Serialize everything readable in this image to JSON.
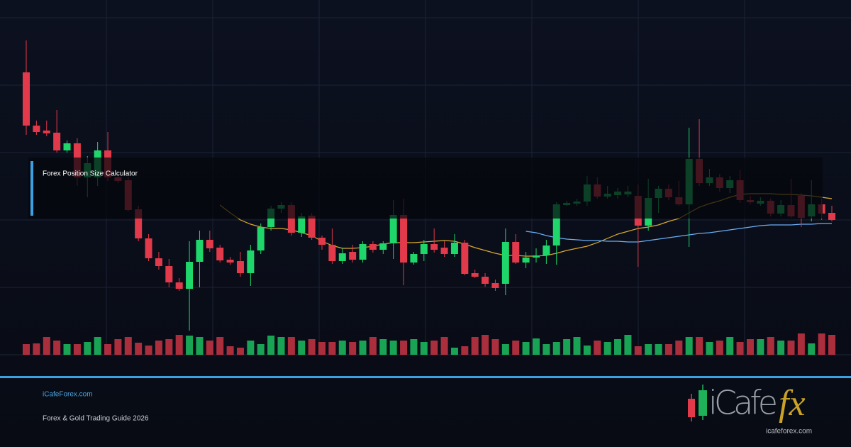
{
  "chart_data": {
    "type": "candlestick",
    "open": [
      398,
      323,
      316,
      313,
      288,
      298,
      250,
      250,
      288,
      250,
      246,
      205,
      164,
      136,
      125,
      102,
      93,
      131,
      162,
      151,
      134,
      132,
      115,
      147,
      180,
      206,
      211,
      172,
      196,
      165,
      155,
      132,
      145,
      134,
      156,
      148,
      157,
      197,
      130,
      142,
      156,
      151,
      142,
      158,
      115,
      110,
      101,
      100,
      159,
      130,
      137,
      140,
      154,
      211,
      213,
      216,
      240,
      223,
      225,
      226,
      224,
      182,
      221,
      234,
      222,
      212,
      276,
      242,
      250,
      235,
      246,
      218,
      213,
      217,
      199,
      211,
      224,
      195,
      212,
      200
    ],
    "high": [
      443,
      330,
      330,
      345,
      302,
      305,
      280,
      300,
      314,
      255,
      250,
      210,
      170,
      145,
      135,
      108,
      160,
      175,
      175,
      155,
      138,
      145,
      155,
      185,
      210,
      215,
      215,
      200,
      200,
      168,
      178,
      150,
      155,
      160,
      160,
      160,
      218,
      220,
      145,
      162,
      178,
      160,
      170,
      162,
      120,
      115,
      106,
      178,
      170,
      145,
      150,
      162,
      215,
      217,
      220,
      252,
      250,
      238,
      235,
      238,
      240,
      248,
      238,
      240,
      245,
      320,
      332,
      262,
      255,
      252,
      260,
      224,
      222,
      220,
      218,
      248,
      228,
      246,
      220,
      210
    ],
    "low": [
      310,
      310,
      308,
      285,
      285,
      238,
      222,
      238,
      245,
      242,
      202,
      160,
      132,
      120,
      95,
      90,
      34,
      95,
      145,
      130,
      127,
      110,
      97,
      142,
      175,
      200,
      168,
      166,
      162,
      148,
      128,
      128,
      130,
      130,
      144,
      142,
      135,
      98,
      127,
      132,
      144,
      138,
      138,
      112,
      108,
      96,
      90,
      84,
      128,
      122,
      130,
      128,
      127,
      210,
      210,
      210,
      220,
      220,
      220,
      222,
      124,
      175,
      200,
      218,
      210,
      152,
      238,
      238,
      230,
      228,
      214,
      212,
      210,
      195,
      195,
      193,
      180,
      188,
      190,
      188
    ],
    "close": [
      323,
      314,
      312,
      288,
      298,
      250,
      270,
      288,
      250,
      245,
      204,
      164,
      136,
      125,
      102,
      93,
      131,
      162,
      150,
      133,
      130,
      115,
      147,
      180,
      206,
      211,
      172,
      195,
      165,
      155,
      132,
      143,
      134,
      156,
      148,
      157,
      197,
      130,
      142,
      156,
      148,
      142,
      158,
      114,
      110,
      100,
      94,
      159,
      130,
      137,
      140,
      154,
      212,
      214,
      216,
      240,
      223,
      227,
      230,
      230,
      182,
      221,
      234,
      222,
      212,
      276,
      242,
      250,
      235,
      246,
      218,
      215,
      217,
      199,
      211,
      195,
      193,
      212,
      199,
      190
    ],
    "volume": [
      15,
      16,
      25,
      20,
      15,
      15,
      18,
      25,
      15,
      22,
      25,
      17,
      13,
      20,
      22,
      28,
      27,
      25,
      20,
      25,
      12,
      10,
      20,
      15,
      27,
      25,
      25,
      20,
      22,
      18,
      18,
      20,
      18,
      20,
      25,
      22,
      20,
      20,
      22,
      18,
      20,
      25,
      10,
      12,
      25,
      28,
      22,
      15,
      20,
      18,
      23,
      15,
      18,
      22,
      25,
      13,
      20,
      18,
      22,
      28,
      12,
      15,
      15,
      15,
      20,
      25,
      25,
      18,
      20,
      25,
      18,
      22,
      22,
      25,
      20,
      20,
      30,
      16,
      30,
      28
    ],
    "up_color": "#1fd66b",
    "down_color": "#e23a4b",
    "lines": [
      {
        "color": "#d9a92e",
        "values": [
          null,
          null,
          null,
          null,
          null,
          null,
          null,
          null,
          null,
          null,
          null,
          null,
          null,
          null,
          null,
          null,
          null,
          null,
          null,
          211,
          200,
          190,
          184,
          180,
          178,
          178,
          176,
          172,
          168,
          160,
          154,
          150,
          150,
          151,
          153,
          156,
          158,
          158,
          158,
          159,
          160,
          161,
          160,
          156,
          151,
          147,
          143,
          140,
          140,
          139,
          139,
          140,
          143,
          147,
          150,
          153,
          158,
          164,
          170,
          174,
          178,
          180,
          183,
          188,
          192,
          200,
          208,
          213,
          217,
          222,
          226,
          227,
          227,
          227,
          226,
          226,
          225,
          224,
          222,
          220
        ]
      },
      {
        "color": "#6aaef5",
        "values": [
          null,
          null,
          null,
          null,
          null,
          null,
          null,
          null,
          null,
          null,
          null,
          null,
          null,
          null,
          null,
          null,
          null,
          null,
          null,
          null,
          null,
          null,
          null,
          null,
          null,
          null,
          null,
          null,
          null,
          null,
          null,
          null,
          null,
          null,
          null,
          null,
          null,
          null,
          null,
          null,
          null,
          null,
          null,
          null,
          null,
          null,
          null,
          null,
          null,
          174,
          172,
          168,
          165,
          163,
          162,
          161,
          161,
          160,
          160,
          159,
          159,
          161,
          163,
          165,
          167,
          169,
          171,
          172,
          174,
          176,
          178,
          180,
          182,
          183,
          183,
          183,
          184,
          184,
          185,
          185
        ]
      }
    ]
  },
  "overlay_title": "Forex Position Size Calculator",
  "footer": {
    "site": "iCafeForex.com",
    "subtitle": "Forex & Gold Trading Guide 2026"
  },
  "logo": {
    "brand": "iCafe",
    "accent": "fx",
    "url": "icafeforex.com"
  }
}
